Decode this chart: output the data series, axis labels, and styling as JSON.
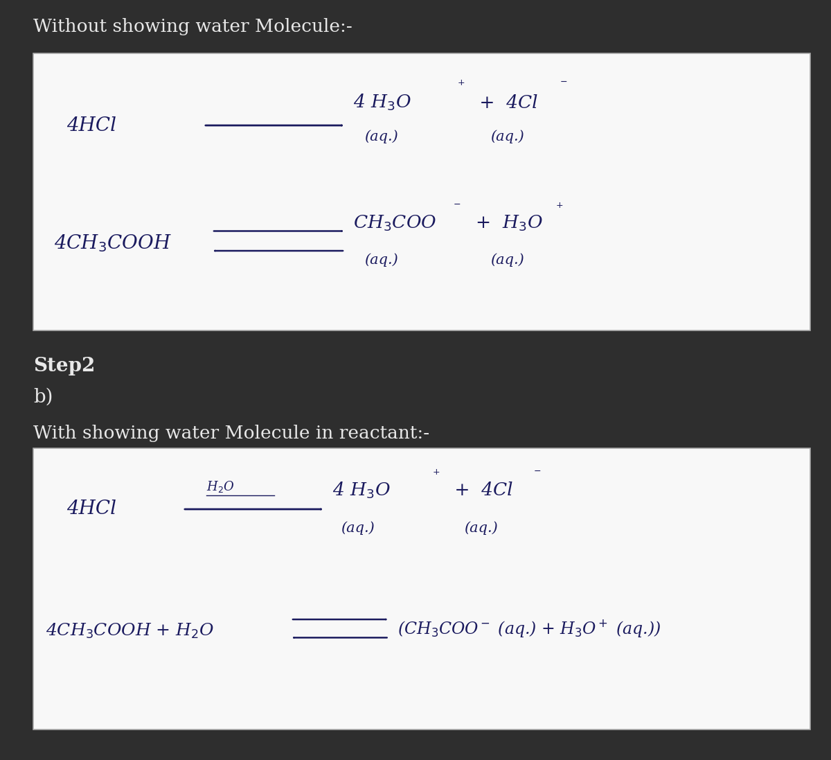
{
  "bg_color": "#2e2e2e",
  "white_box_color": "#f8f8f8",
  "text_color_white": "#e8e8e8",
  "text_color_dark": "#1a1a5e",
  "title1": "Without showing water Molecule:-",
  "title2": "With showing water Molecule in reactant:-",
  "step_label": "Step2",
  "b_label": "b)",
  "fig_width": 12.0,
  "fig_height": 10.97,
  "dpi": 100
}
